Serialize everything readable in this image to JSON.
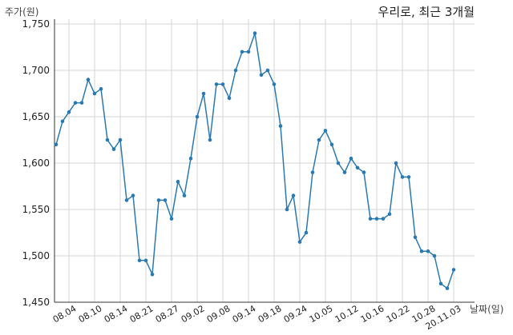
{
  "chart_data": {
    "type": "line",
    "title": "우리로, 최근 3개월",
    "ylabel": "주가(원)",
    "xlabel": "날짜(일)",
    "ylim": [
      1450,
      1750
    ],
    "y_ticks": [
      "1,450",
      "1,500",
      "1,550",
      "1,600",
      "1,650",
      "1,700",
      "1,750"
    ],
    "x_tick_labels": [
      "08.04",
      "08.10",
      "08.14",
      "08.21",
      "08.27",
      "09.02",
      "09.08",
      "09.14",
      "09.18",
      "09.24",
      "10.05",
      "10.12",
      "10.16",
      "10.22",
      "10.28",
      "20.11.03"
    ],
    "grid": true,
    "line_color": "#2a7ab0",
    "series": [
      {
        "values": [
          1620,
          1645,
          1655,
          1665,
          1665,
          1690,
          1675,
          1680,
          1625,
          1615,
          1625,
          1560,
          1565,
          1495,
          1495,
          1480,
          1560,
          1560,
          1540,
          1580,
          1565,
          1605,
          1650,
          1675,
          1625,
          1685,
          1685,
          1670,
          1700,
          1720,
          1720,
          1740,
          1695,
          1700,
          1685,
          1640,
          1550,
          1565,
          1515,
          1525,
          1590,
          1625,
          1635,
          1620,
          1600,
          1590,
          1605,
          1595,
          1590,
          1540,
          1540,
          1540,
          1545,
          1600,
          1585,
          1585,
          1520,
          1505,
          1505,
          1500,
          1470,
          1465,
          1485
        ]
      }
    ]
  }
}
